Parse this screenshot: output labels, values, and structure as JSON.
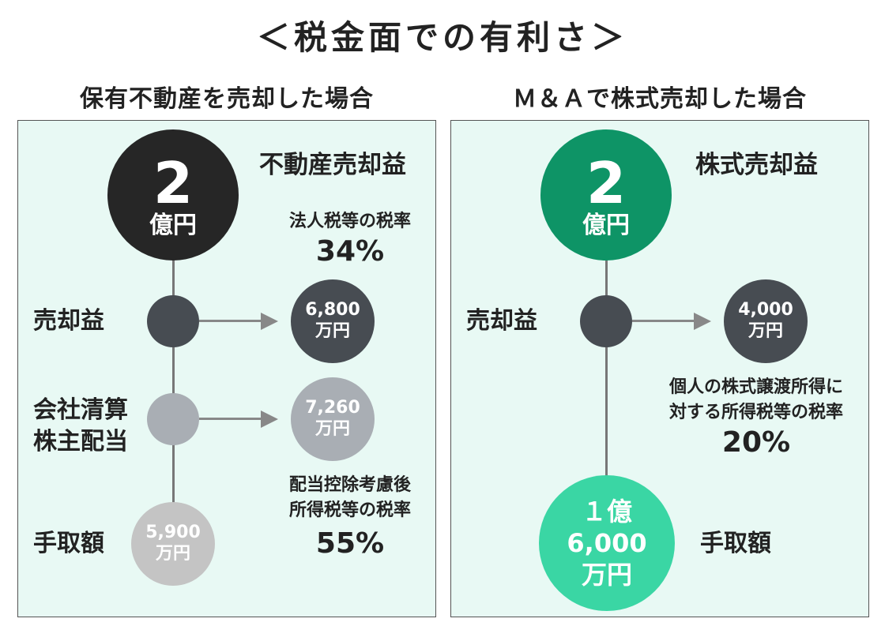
{
  "title": "＜税金面での有利さ＞",
  "left": {
    "heading": "保有不動産を売却した場合",
    "top_circle": {
      "number": "2",
      "unit": "億円"
    },
    "top_label": "不動産売却益",
    "rate1": {
      "label": "法人税等の税率",
      "value": "34%"
    },
    "row1": {
      "label": "売却益",
      "amount": "6,800",
      "unit": "万円"
    },
    "row2": {
      "label_line1": "会社清算",
      "label_line2": "株主配当",
      "amount": "7,260",
      "unit": "万円"
    },
    "rate2": {
      "line1": "配当控除考慮後",
      "line2": "所得税等の税率",
      "value": "55%"
    },
    "row3": {
      "label": "手取額",
      "amount": "5,900",
      "unit": "万円"
    }
  },
  "right": {
    "heading": "Ｍ＆Ａで株式売却した場合",
    "top_circle": {
      "number": "2",
      "unit": "億円"
    },
    "top_label": "株式売却益",
    "row1": {
      "label": "売却益",
      "amount": "4,000",
      "unit": "万円"
    },
    "rate": {
      "line1": "個人の株式譲渡所得に",
      "line2": "対する所得税等の税率",
      "value": "20%"
    },
    "bottom_circle": {
      "line1": "１億",
      "line2": "6,000",
      "line3": "万円"
    },
    "bottom_label": "手取額"
  },
  "colors": {
    "panel_bg": "#e8f9f4",
    "black_circle": "#262626",
    "dark_circle": "#474c52",
    "gray_circle": "#a9aeb4",
    "light_circle": "#c4c4c4",
    "green_dark": "#0e9466",
    "green_light": "#3ad6a4"
  }
}
